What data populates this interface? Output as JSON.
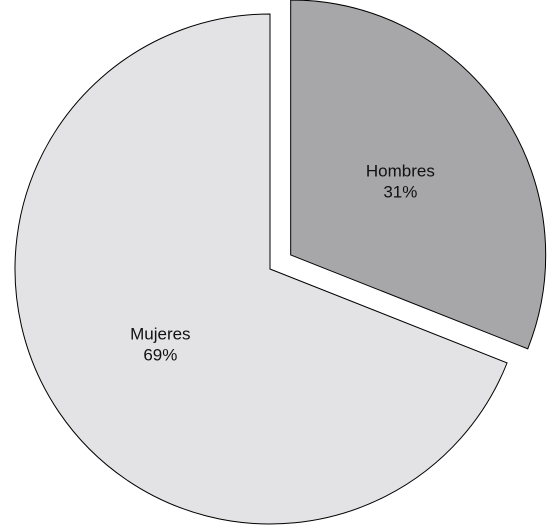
{
  "chart_data": {
    "type": "pie",
    "title": "",
    "legend": "none",
    "slices": [
      {
        "label": "Hombres",
        "value": 31,
        "value_label": "31%",
        "color": "#a7a7a9",
        "exploded": true
      },
      {
        "label": "Mujeres",
        "value": 69,
        "value_label": "69%",
        "color": "#e3e3e5",
        "exploded": false
      }
    ]
  }
}
